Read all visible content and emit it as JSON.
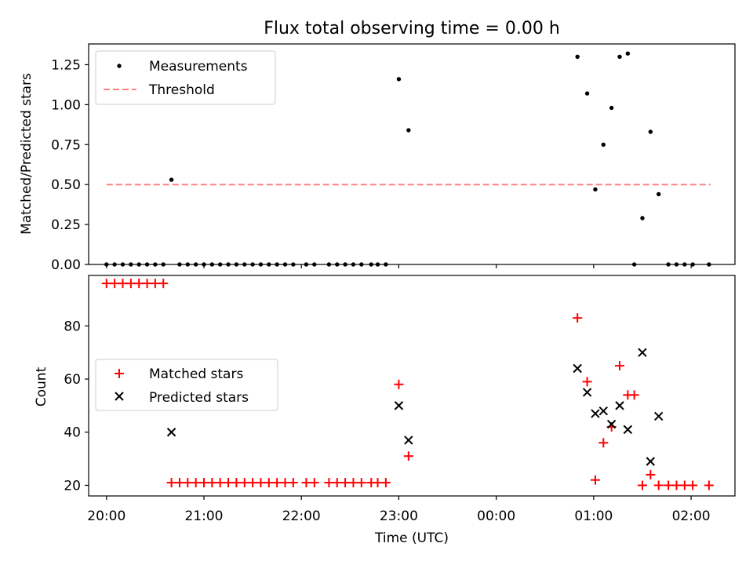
{
  "title": "Flux total observing time = 0.00 h",
  "xlabel": "Time (UTC)",
  "x_tick_labels": [
    "20:00",
    "21:00",
    "22:00",
    "23:00",
    "00:00",
    "01:00",
    "02:00"
  ],
  "chart_data": [
    {
      "type": "scatter",
      "title": "Flux total observing time = 0.00 h",
      "xlabel": "",
      "ylabel": "Matched/Predicted stars",
      "xlim": [
        "19:49",
        "02:27"
      ],
      "ylim": [
        0,
        1.38
      ],
      "x_ticks": [
        "20:00",
        "21:00",
        "22:00",
        "23:00",
        "00:00",
        "01:00",
        "02:00"
      ],
      "y_ticks": [
        0.0,
        0.25,
        0.5,
        0.75,
        1.0,
        1.25
      ],
      "y_tick_labels": [
        "0.00",
        "0.25",
        "0.50",
        "0.75",
        "1.00",
        "1.25"
      ],
      "legend_position": "upper-left",
      "series": [
        {
          "name": "Measurements",
          "marker": "dot",
          "color": "#000000",
          "points": [
            [
              "20:00",
              0
            ],
            [
              "20:05",
              0
            ],
            [
              "20:10",
              0
            ],
            [
              "20:15",
              0
            ],
            [
              "20:20",
              0
            ],
            [
              "20:25",
              0
            ],
            [
              "20:30",
              0
            ],
            [
              "20:35",
              0
            ],
            [
              "20:40",
              0.53
            ],
            [
              "20:45",
              0
            ],
            [
              "20:50",
              0
            ],
            [
              "20:55",
              0
            ],
            [
              "21:00",
              0
            ],
            [
              "21:05",
              0
            ],
            [
              "21:10",
              0
            ],
            [
              "21:15",
              0
            ],
            [
              "21:20",
              0
            ],
            [
              "21:25",
              0
            ],
            [
              "21:30",
              0
            ],
            [
              "21:35",
              0
            ],
            [
              "21:40",
              0
            ],
            [
              "21:45",
              0
            ],
            [
              "21:50",
              0
            ],
            [
              "21:55",
              0
            ],
            [
              "22:03",
              0
            ],
            [
              "22:08",
              0
            ],
            [
              "22:17",
              0
            ],
            [
              "22:22",
              0
            ],
            [
              "22:27",
              0
            ],
            [
              "22:32",
              0
            ],
            [
              "22:37",
              0
            ],
            [
              "22:43",
              0
            ],
            [
              "22:47",
              0
            ],
            [
              "22:52",
              0
            ],
            [
              "23:00",
              1.16
            ],
            [
              "23:06",
              0.84
            ],
            [
              "00:50",
              1.3
            ],
            [
              "00:56",
              1.07
            ],
            [
              "01:01",
              0.47
            ],
            [
              "01:06",
              0.75
            ],
            [
              "01:11",
              0.98
            ],
            [
              "01:16",
              1.3
            ],
            [
              "01:21",
              1.32
            ],
            [
              "01:25",
              0
            ],
            [
              "01:30",
              0.29
            ],
            [
              "01:35",
              0.83
            ],
            [
              "01:40",
              0.44
            ],
            [
              "01:46",
              0
            ],
            [
              "01:51",
              0
            ],
            [
              "01:56",
              0
            ],
            [
              "02:01",
              0
            ],
            [
              "02:11",
              0
            ]
          ]
        },
        {
          "name": "Threshold",
          "type": "line",
          "style": "dashed",
          "color": "#ff8080",
          "points": [
            [
              "20:00",
              0.5
            ],
            [
              "02:12",
              0.5
            ]
          ]
        }
      ]
    },
    {
      "type": "scatter",
      "title": "",
      "xlabel": "Time (UTC)",
      "ylabel": "Count",
      "xlim": [
        "19:49",
        "02:27"
      ],
      "ylim": [
        16,
        99
      ],
      "x_ticks": [
        "20:00",
        "21:00",
        "22:00",
        "23:00",
        "00:00",
        "01:00",
        "02:00"
      ],
      "y_ticks": [
        20,
        40,
        60,
        80
      ],
      "legend_position": "center-left",
      "series": [
        {
          "name": "Matched stars",
          "marker": "plus",
          "color": "#ff0000",
          "points": [
            [
              "20:00",
              96
            ],
            [
              "20:05",
              96
            ],
            [
              "20:10",
              96
            ],
            [
              "20:15",
              96
            ],
            [
              "20:20",
              96
            ],
            [
              "20:25",
              96
            ],
            [
              "20:30",
              96
            ],
            [
              "20:35",
              96
            ],
            [
              "20:40",
              21
            ],
            [
              "20:45",
              21
            ],
            [
              "20:50",
              21
            ],
            [
              "20:55",
              21
            ],
            [
              "21:00",
              21
            ],
            [
              "21:05",
              21
            ],
            [
              "21:10",
              21
            ],
            [
              "21:15",
              21
            ],
            [
              "21:20",
              21
            ],
            [
              "21:25",
              21
            ],
            [
              "21:30",
              21
            ],
            [
              "21:35",
              21
            ],
            [
              "21:40",
              21
            ],
            [
              "21:45",
              21
            ],
            [
              "21:50",
              21
            ],
            [
              "21:55",
              21
            ],
            [
              "22:03",
              21
            ],
            [
              "22:08",
              21
            ],
            [
              "22:17",
              21
            ],
            [
              "22:22",
              21
            ],
            [
              "22:27",
              21
            ],
            [
              "22:32",
              21
            ],
            [
              "22:37",
              21
            ],
            [
              "22:43",
              21
            ],
            [
              "22:47",
              21
            ],
            [
              "22:52",
              21
            ],
            [
              "23:00",
              58
            ],
            [
              "23:06",
              31
            ],
            [
              "00:50",
              83
            ],
            [
              "00:56",
              59
            ],
            [
              "01:01",
              22
            ],
            [
              "01:06",
              36
            ],
            [
              "01:11",
              42
            ],
            [
              "01:16",
              65
            ],
            [
              "01:21",
              54
            ],
            [
              "01:25",
              54
            ],
            [
              "01:30",
              20
            ],
            [
              "01:35",
              24
            ],
            [
              "01:40",
              20
            ],
            [
              "01:46",
              20
            ],
            [
              "01:51",
              20
            ],
            [
              "01:56",
              20
            ],
            [
              "02:01",
              20
            ],
            [
              "02:11",
              20
            ]
          ]
        },
        {
          "name": "Predicted stars",
          "marker": "x",
          "color": "#000000",
          "points": [
            [
              "20:40",
              40
            ],
            [
              "23:00",
              50
            ],
            [
              "23:06",
              37
            ],
            [
              "00:50",
              64
            ],
            [
              "00:56",
              55
            ],
            [
              "01:01",
              47
            ],
            [
              "01:06",
              48
            ],
            [
              "01:11",
              43
            ],
            [
              "01:16",
              50
            ],
            [
              "01:21",
              41
            ],
            [
              "01:30",
              70
            ],
            [
              "01:35",
              29
            ],
            [
              "01:40",
              46
            ]
          ]
        }
      ]
    }
  ]
}
